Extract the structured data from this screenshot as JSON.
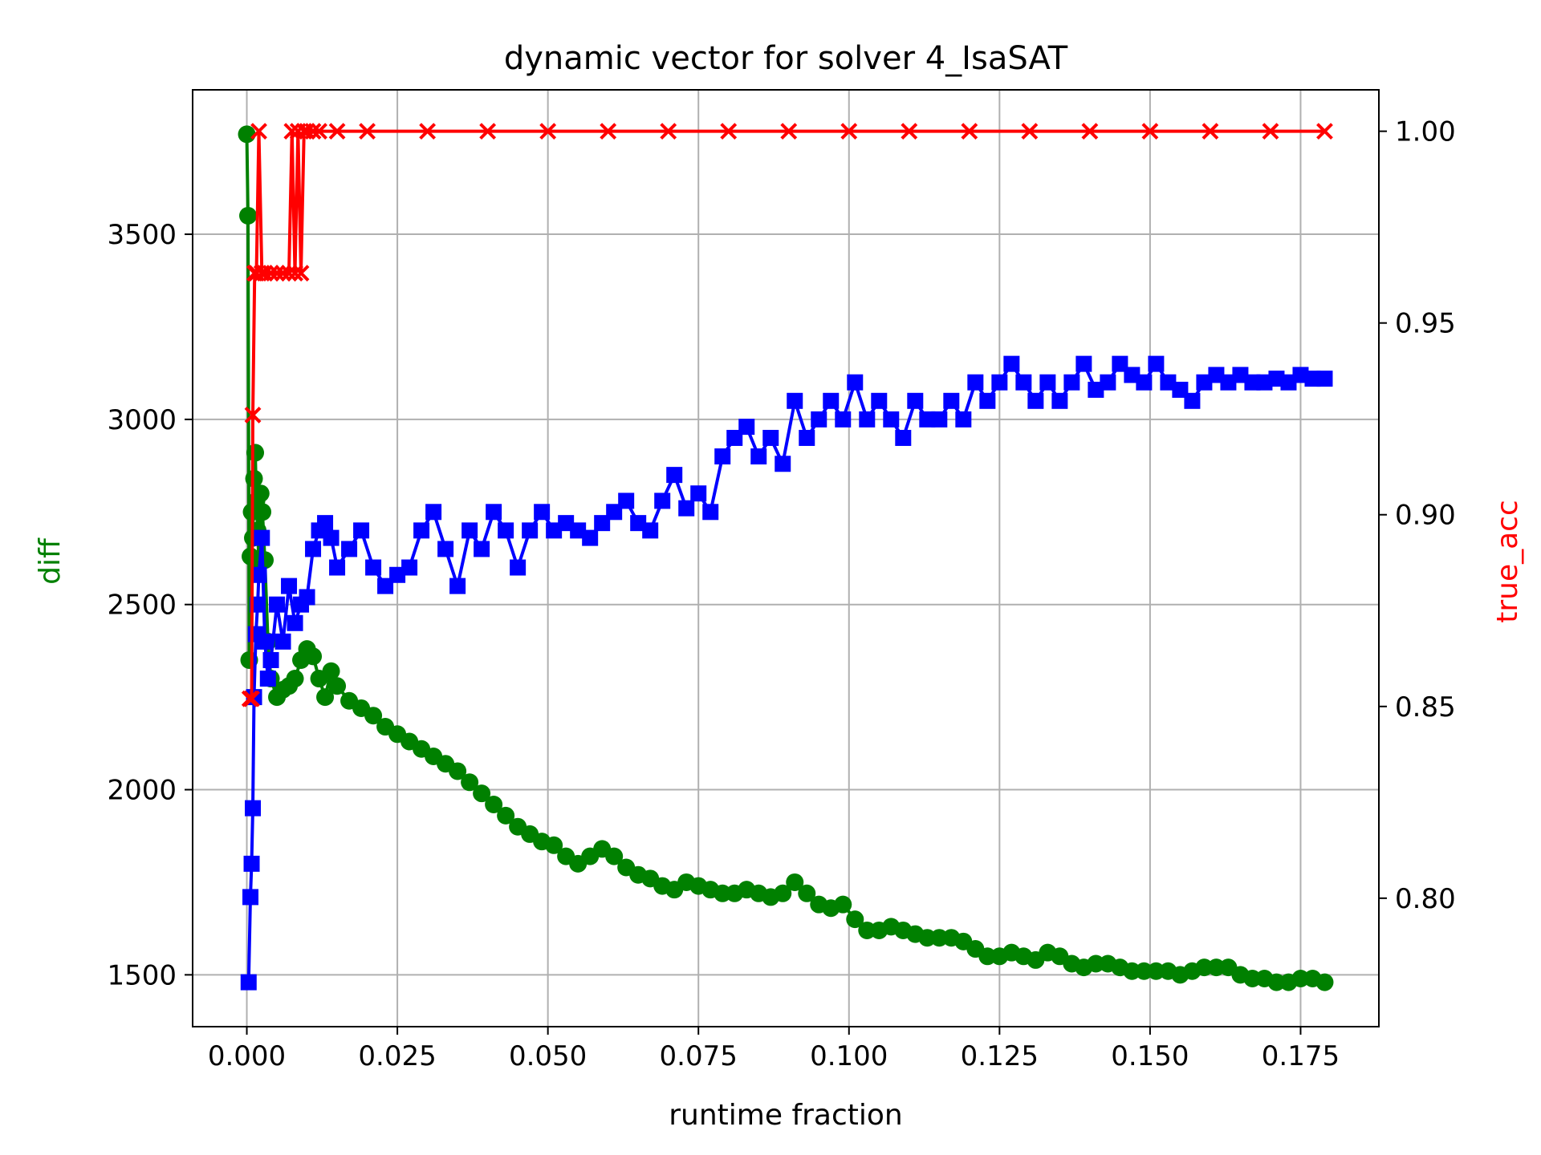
{
  "chart_data": {
    "type": "line",
    "title": "dynamic vector for solver 4_IsaSAT",
    "xlabel": "runtime fraction",
    "ylabel_left": "diff",
    "ylabel_right": "true_acc",
    "xlim": [
      -0.009,
      0.188
    ],
    "ylim_left": [
      1360,
      3890
    ],
    "ylim_right": [
      0.7665,
      1.0108
    ],
    "x_ticks": [
      0.0,
      0.025,
      0.05,
      0.075,
      0.1,
      0.125,
      0.15,
      0.175
    ],
    "x_tick_labels": [
      "0.000",
      "0.025",
      "0.050",
      "0.075",
      "0.100",
      "0.125",
      "0.150",
      "0.175"
    ],
    "y_left_ticks": [
      1500,
      2000,
      2500,
      3000,
      3500
    ],
    "y_left_tick_labels": [
      "1500",
      "2000",
      "2500",
      "3000",
      "3500"
    ],
    "y_right_ticks": [
      0.8,
      0.85,
      0.9,
      0.95,
      1.0
    ],
    "y_right_tick_labels": [
      "0.80",
      "0.85",
      "0.90",
      "0.95",
      "1.00"
    ],
    "grid": true,
    "colors": {
      "green_series": "#008000",
      "blue_series": "#0000ff",
      "red_series": "#ff0000",
      "left_label": "#008000",
      "right_label": "#ff0000"
    },
    "series": [
      {
        "axis": "left",
        "marker": "circle",
        "color": "#008000",
        "x": [
          0.0,
          0.0002,
          0.0004,
          0.0006,
          0.0008,
          0.001,
          0.0012,
          0.0014,
          0.0016,
          0.0018,
          0.002,
          0.0023,
          0.0026,
          0.003,
          0.0035,
          0.004,
          0.005,
          0.006,
          0.007,
          0.008,
          0.009,
          0.01,
          0.011,
          0.012,
          0.013,
          0.014,
          0.015,
          0.017,
          0.019,
          0.021,
          0.023,
          0.025,
          0.027,
          0.029,
          0.031,
          0.033,
          0.035,
          0.037,
          0.039,
          0.041,
          0.043,
          0.045,
          0.047,
          0.049,
          0.051,
          0.053,
          0.055,
          0.057,
          0.059,
          0.061,
          0.063,
          0.065,
          0.067,
          0.069,
          0.071,
          0.073,
          0.075,
          0.077,
          0.079,
          0.081,
          0.083,
          0.085,
          0.087,
          0.089,
          0.091,
          0.093,
          0.095,
          0.097,
          0.099,
          0.101,
          0.103,
          0.105,
          0.107,
          0.109,
          0.111,
          0.113,
          0.115,
          0.117,
          0.119,
          0.121,
          0.123,
          0.125,
          0.127,
          0.129,
          0.131,
          0.133,
          0.135,
          0.137,
          0.139,
          0.141,
          0.143,
          0.145,
          0.147,
          0.149,
          0.151,
          0.153,
          0.155,
          0.157,
          0.159,
          0.161,
          0.163,
          0.165,
          0.167,
          0.169,
          0.171,
          0.173,
          0.175,
          0.177,
          0.179
        ],
        "values": [
          3770,
          3550,
          2350,
          2630,
          2750,
          2680,
          2840,
          2910,
          2780,
          2700,
          2620,
          2800,
          2750,
          2620,
          2400,
          2300,
          2250,
          2270,
          2280,
          2300,
          2350,
          2380,
          2360,
          2300,
          2250,
          2320,
          2280,
          2240,
          2220,
          2200,
          2170,
          2150,
          2130,
          2110,
          2090,
          2070,
          2050,
          2020,
          1990,
          1960,
          1930,
          1900,
          1880,
          1860,
          1850,
          1820,
          1800,
          1820,
          1840,
          1820,
          1790,
          1770,
          1760,
          1740,
          1730,
          1750,
          1740,
          1730,
          1720,
          1720,
          1730,
          1720,
          1710,
          1720,
          1750,
          1720,
          1690,
          1680,
          1690,
          1650,
          1620,
          1620,
          1630,
          1620,
          1610,
          1600,
          1600,
          1600,
          1590,
          1570,
          1550,
          1550,
          1560,
          1550,
          1540,
          1560,
          1550,
          1530,
          1520,
          1530,
          1530,
          1520,
          1510,
          1510,
          1510,
          1510,
          1500,
          1510,
          1520,
          1520,
          1520,
          1500,
          1490,
          1490,
          1480,
          1480,
          1490,
          1490,
          1480
        ]
      },
      {
        "axis": "left",
        "marker": "square",
        "color": "#0000ff",
        "x": [
          0.0003,
          0.0006,
          0.0008,
          0.001,
          0.0012,
          0.0015,
          0.0018,
          0.002,
          0.0025,
          0.003,
          0.0035,
          0.004,
          0.005,
          0.006,
          0.007,
          0.008,
          0.009,
          0.01,
          0.011,
          0.012,
          0.013,
          0.014,
          0.015,
          0.017,
          0.019,
          0.021,
          0.023,
          0.025,
          0.027,
          0.029,
          0.031,
          0.033,
          0.035,
          0.037,
          0.039,
          0.041,
          0.043,
          0.045,
          0.047,
          0.049,
          0.051,
          0.053,
          0.055,
          0.057,
          0.059,
          0.061,
          0.063,
          0.065,
          0.067,
          0.069,
          0.071,
          0.073,
          0.075,
          0.077,
          0.079,
          0.081,
          0.083,
          0.085,
          0.087,
          0.089,
          0.091,
          0.093,
          0.095,
          0.097,
          0.099,
          0.101,
          0.103,
          0.105,
          0.107,
          0.109,
          0.111,
          0.113,
          0.115,
          0.117,
          0.119,
          0.121,
          0.123,
          0.125,
          0.127,
          0.129,
          0.131,
          0.133,
          0.135,
          0.137,
          0.139,
          0.141,
          0.143,
          0.145,
          0.147,
          0.149,
          0.151,
          0.153,
          0.155,
          0.157,
          0.159,
          0.161,
          0.163,
          0.165,
          0.167,
          0.169,
          0.171,
          0.173,
          0.175,
          0.177,
          0.179
        ],
        "values": [
          1480,
          1710,
          1800,
          1950,
          2250,
          2420,
          2500,
          2580,
          2680,
          2400,
          2300,
          2350,
          2500,
          2400,
          2550,
          2450,
          2500,
          2520,
          2650,
          2700,
          2720,
          2680,
          2600,
          2650,
          2700,
          2600,
          2550,
          2580,
          2600,
          2700,
          2750,
          2650,
          2550,
          2700,
          2650,
          2750,
          2700,
          2600,
          2700,
          2750,
          2700,
          2720,
          2700,
          2680,
          2720,
          2750,
          2780,
          2720,
          2700,
          2780,
          2850,
          2760,
          2800,
          2750,
          2900,
          2950,
          2980,
          2900,
          2950,
          2880,
          3050,
          2950,
          3000,
          3050,
          3000,
          3100,
          3000,
          3050,
          3000,
          2950,
          3050,
          3000,
          3000,
          3050,
          3000,
          3100,
          3050,
          3100,
          3150,
          3100,
          3050,
          3100,
          3050,
          3100,
          3150,
          3080,
          3100,
          3150,
          3120,
          3100,
          3150,
          3100,
          3080,
          3050,
          3100,
          3120,
          3100,
          3120,
          3100,
          3100,
          3110,
          3100,
          3120,
          3110,
          3110
        ]
      },
      {
        "axis": "right",
        "marker": "x",
        "color": "#ff0000",
        "x": [
          0.0005,
          0.0008,
          0.001,
          0.0013,
          0.0016,
          0.002,
          0.0025,
          0.003,
          0.004,
          0.005,
          0.006,
          0.007,
          0.0075,
          0.008,
          0.0085,
          0.009,
          0.0095,
          0.01,
          0.011,
          0.012,
          0.015,
          0.02,
          0.03,
          0.04,
          0.05,
          0.06,
          0.07,
          0.08,
          0.09,
          0.1,
          0.11,
          0.12,
          0.13,
          0.14,
          0.15,
          0.16,
          0.17,
          0.179
        ],
        "values": [
          0.852,
          0.852,
          0.926,
          0.963,
          0.963,
          1.0,
          0.963,
          0.963,
          0.963,
          0.963,
          0.963,
          0.963,
          1.0,
          0.963,
          1.0,
          0.963,
          1.0,
          1.0,
          1.0,
          1.0,
          1.0,
          1.0,
          1.0,
          1.0,
          1.0,
          1.0,
          1.0,
          1.0,
          1.0,
          1.0,
          1.0,
          1.0,
          1.0,
          1.0,
          1.0,
          1.0,
          1.0,
          1.0
        ]
      }
    ]
  }
}
